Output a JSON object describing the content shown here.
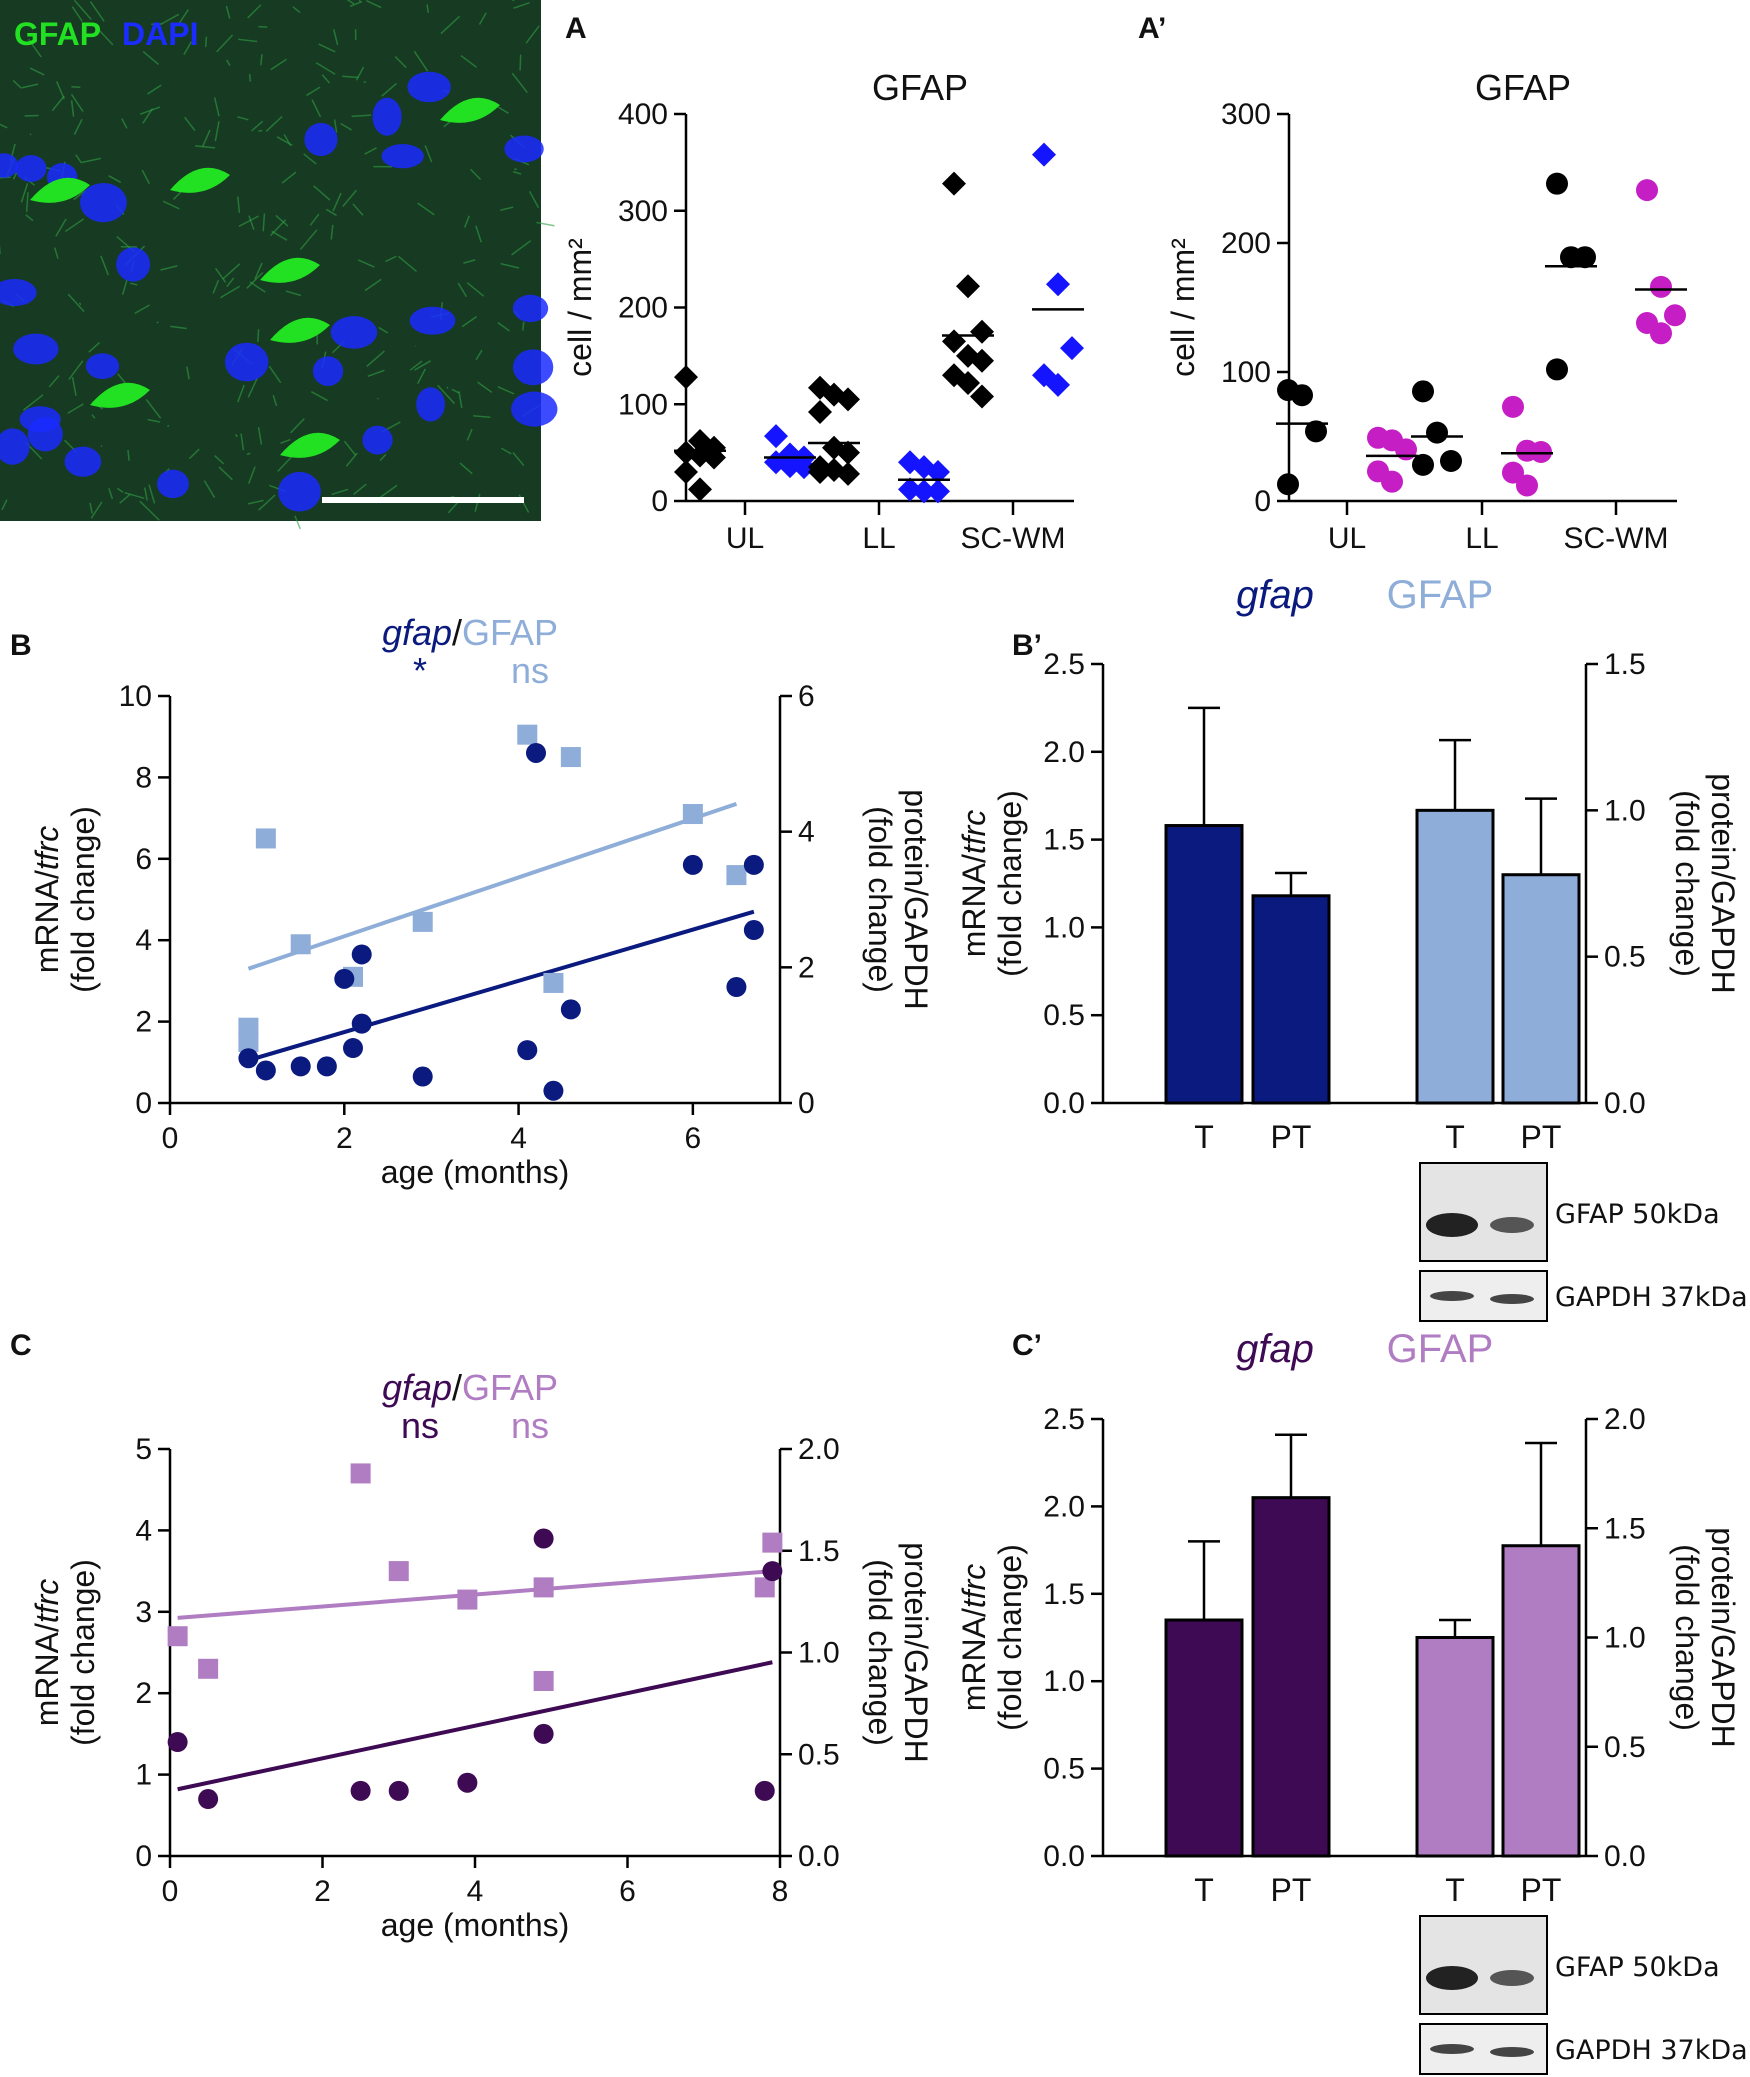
{
  "micrograph": {
    "label_gfap": "GFAP",
    "label_dapi": "DAPI",
    "colors": {
      "gfap": "#22e022",
      "dapi": "#1a2cff"
    }
  },
  "panel_labels": {
    "A": "A",
    "A2": "A’",
    "B": "B",
    "B2": "B’",
    "C": "C",
    "C2": "C’"
  },
  "colors": {
    "black": "#000000",
    "blue": "#1414ff",
    "magenta": "#c41ec4",
    "navy": "#0b1a7e",
    "lightblue": "#8eadd8",
    "darkpurple": "#3d0a53",
    "lightpurple": "#b07cc2"
  },
  "blots": {
    "B2": {
      "top_label": "GFAP 50kDa",
      "bottom_label": "GAPDH 37kDa"
    },
    "C2": {
      "top_label": "GFAP 50kDa",
      "bottom_label": "GAPDH 37kDa"
    }
  },
  "chart_data": [
    {
      "id": "A",
      "type": "scatter",
      "title": "GFAP",
      "ylabel": "cell / mm²",
      "ylim": [
        0,
        400
      ],
      "yticks": [
        "0",
        "100",
        "200",
        "300",
        "400"
      ],
      "categories": [
        "UL",
        "LL",
        "SC-WM"
      ],
      "series": [
        {
          "name": "group 1",
          "marker": "diamond",
          "color": "#000000",
          "values": [
            [
              128,
              62,
              55,
              50,
              47,
              45,
              30,
              12
            ],
            [
              117,
              110,
              105,
              92,
              55,
              50,
              35,
              32,
              28,
              30
            ],
            [
              328,
              222,
              175,
              165,
              150,
              145,
              130,
              122,
              108
            ]
          ],
          "means": [
            52,
            60,
            171
          ]
        },
        {
          "name": "group 2",
          "marker": "diamond",
          "color": "#1414ff",
          "values": [
            [
              67,
              48,
              45,
              40,
              36,
              35
            ],
            [
              40,
              35,
              30,
              12,
              10,
              10
            ],
            [
              358,
              224,
              158,
              130,
              120
            ]
          ],
          "means": [
            45,
            22,
            198
          ]
        }
      ]
    },
    {
      "id": "A2",
      "type": "scatter",
      "title": "GFAP",
      "ylabel": "cell / mm²",
      "ylim": [
        0,
        300
      ],
      "yticks": [
        "0",
        "100",
        "200",
        "300"
      ],
      "categories": [
        "UL",
        "LL",
        "SC-WM"
      ],
      "series": [
        {
          "name": "group 1",
          "marker": "circle",
          "color": "#000000",
          "values": [
            [
              86,
              82,
              54,
              13
            ],
            [
              85,
              53,
              31,
              28
            ],
            [
              246,
              189,
              189,
              102
            ]
          ],
          "means": [
            60,
            50,
            182
          ]
        },
        {
          "name": "group 2",
          "marker": "circle",
          "color": "#c41ec4",
          "values": [
            [
              49,
              47,
              40,
              23,
              15
            ],
            [
              73,
              39,
              38,
              22,
              12
            ],
            [
              241,
              166,
              144,
              138,
              130
            ]
          ],
          "means": [
            35,
            37,
            164
          ]
        }
      ]
    },
    {
      "id": "B",
      "type": "scatter",
      "title_mrna": "gfap",
      "title_sep": "/",
      "title_protein": "GFAP",
      "sig_mrna": "*",
      "sig_protein": "ns",
      "xlabel": "age (months)",
      "ylabel_left_a": "mRNA/",
      "ylabel_left_b": "tfrc",
      "ylabel_left_2": "(fold change)",
      "ylabel_right": "protein/GAPDH",
      "ylabel_right_2": "(fold change)",
      "xlim": [
        0,
        7
      ],
      "xticks": [
        "0",
        "2",
        "4",
        "6"
      ],
      "ylim_left": [
        0,
        10
      ],
      "yticks_left": [
        "0",
        "2",
        "4",
        "6",
        "8",
        "10"
      ],
      "ylim_right": [
        0,
        6
      ],
      "yticks_right": [
        "0",
        "2",
        "4",
        "6"
      ],
      "mrna_points": [
        [
          0.9,
          1.1
        ],
        [
          1.1,
          0.8
        ],
        [
          1.5,
          0.9
        ],
        [
          1.8,
          0.9
        ],
        [
          2.0,
          3.05
        ],
        [
          2.1,
          1.35
        ],
        [
          2.2,
          3.65
        ],
        [
          2.2,
          1.95
        ],
        [
          2.9,
          0.65
        ],
        [
          4.1,
          1.3
        ],
        [
          4.2,
          8.6
        ],
        [
          4.4,
          0.3
        ],
        [
          4.6,
          2.3
        ],
        [
          6.0,
          5.85
        ],
        [
          6.5,
          2.85
        ],
        [
          6.7,
          5.85
        ],
        [
          6.7,
          4.25
        ]
      ],
      "protein_points": [
        [
          0.9,
          1.11
        ],
        [
          0.9,
          0.9
        ],
        [
          1.1,
          3.9
        ],
        [
          1.5,
          2.34
        ],
        [
          2.1,
          1.86
        ],
        [
          2.9,
          2.67
        ],
        [
          4.1,
          5.43
        ],
        [
          4.4,
          1.77
        ],
        [
          4.6,
          5.1
        ],
        [
          6.0,
          4.26
        ],
        [
          6.5,
          3.36
        ]
      ],
      "mrna_fit": [
        [
          0.9,
          1.05
        ],
        [
          6.7,
          4.7
        ]
      ],
      "protein_fit": [
        [
          0.9,
          1.98
        ],
        [
          6.5,
          4.41
        ]
      ],
      "mrna_color": "#0b1a7e",
      "protein_color": "#8eadd8"
    },
    {
      "id": "B2",
      "type": "bar",
      "legend_mrna": "gfap",
      "legend_protein": "GFAP",
      "ylabel_left_a": "mRNA/",
      "ylabel_left_b": "tfrc",
      "ylabel_left_2": "(fold change)",
      "ylabel_right": "protein/GAPDH",
      "ylabel_right_2": "(fold change)",
      "ylim_left": [
        0,
        2.5
      ],
      "yticks_left": [
        "0.0",
        "0.5",
        "1.0",
        "1.5",
        "2.0",
        "2.5"
      ],
      "ylim_right": [
        0,
        1.5
      ],
      "yticks_right": [
        "0.0",
        "0.5",
        "1.0",
        "1.5"
      ],
      "categories": [
        "T",
        "PT",
        "T",
        "PT"
      ],
      "mrna": {
        "values": [
          1.58,
          1.18
        ],
        "errors_upper": [
          2.25,
          1.31
        ],
        "color": "#0b1a7e"
      },
      "protein": {
        "values": [
          1.0,
          0.78
        ],
        "errors_upper": [
          1.24,
          1.04
        ],
        "color": "#8eadd8"
      }
    },
    {
      "id": "C",
      "type": "scatter",
      "title_mrna": "gfap",
      "title_sep": "/",
      "title_protein": "GFAP",
      "sig_mrna": "ns",
      "sig_protein": "ns",
      "xlabel": "age (months)",
      "ylabel_left_a": "mRNA/",
      "ylabel_left_b": "tfrc",
      "ylabel_left_2": "(fold change)",
      "ylabel_right": "protein/GAPDH",
      "ylabel_right_2": "(fold change)",
      "xlim": [
        0,
        8
      ],
      "xticks": [
        "0",
        "2",
        "4",
        "6",
        "8"
      ],
      "ylim_left": [
        0,
        5
      ],
      "yticks_left": [
        "0",
        "1",
        "2",
        "3",
        "4",
        "5"
      ],
      "ylim_right": [
        0,
        2
      ],
      "yticks_right": [
        "0.0",
        "0.5",
        "1.0",
        "1.5",
        "2.0"
      ],
      "mrna_points": [
        [
          0.1,
          1.4
        ],
        [
          0.5,
          0.7
        ],
        [
          2.5,
          0.8
        ],
        [
          3.0,
          0.8
        ],
        [
          3.9,
          0.9
        ],
        [
          4.9,
          3.9
        ],
        [
          4.9,
          1.5
        ],
        [
          7.8,
          0.8
        ],
        [
          7.9,
          3.5
        ]
      ],
      "protein_points": [
        [
          0.1,
          1.08
        ],
        [
          0.5,
          0.92
        ],
        [
          2.5,
          1.88
        ],
        [
          3.0,
          1.4
        ],
        [
          3.9,
          1.26
        ],
        [
          4.9,
          1.32
        ],
        [
          4.9,
          0.86
        ],
        [
          7.9,
          1.54
        ],
        [
          7.8,
          1.32
        ]
      ],
      "mrna_fit": [
        [
          0.1,
          0.82
        ],
        [
          7.9,
          2.38
        ]
      ],
      "protein_fit": [
        [
          0.1,
          1.17
        ],
        [
          7.9,
          1.4
        ]
      ],
      "mrna_color": "#3d0a53",
      "protein_color": "#b07cc2"
    },
    {
      "id": "C2",
      "type": "bar",
      "legend_mrna": "gfap",
      "legend_protein": "GFAP",
      "ylabel_left_a": "mRNA/",
      "ylabel_left_b": "tfrc",
      "ylabel_left_2": "(fold change)",
      "ylabel_right": "protein/GAPDH",
      "ylabel_right_2": "(fold change)",
      "ylim_left": [
        0,
        2.5
      ],
      "yticks_left": [
        "0.0",
        "0.5",
        "1.0",
        "1.5",
        "2.0",
        "2.5"
      ],
      "ylim_right": [
        0,
        2
      ],
      "yticks_right": [
        "0.0",
        "0.5",
        "1.0",
        "1.5",
        "2.0"
      ],
      "categories": [
        "T",
        "PT",
        "T",
        "PT"
      ],
      "mrna": {
        "values": [
          1.35,
          2.05
        ],
        "errors_upper": [
          1.8,
          2.41
        ],
        "color": "#3d0a53"
      },
      "protein": {
        "values": [
          1.0,
          1.42
        ],
        "errors_upper": [
          1.08,
          1.89
        ],
        "color": "#b07cc2"
      }
    }
  ]
}
